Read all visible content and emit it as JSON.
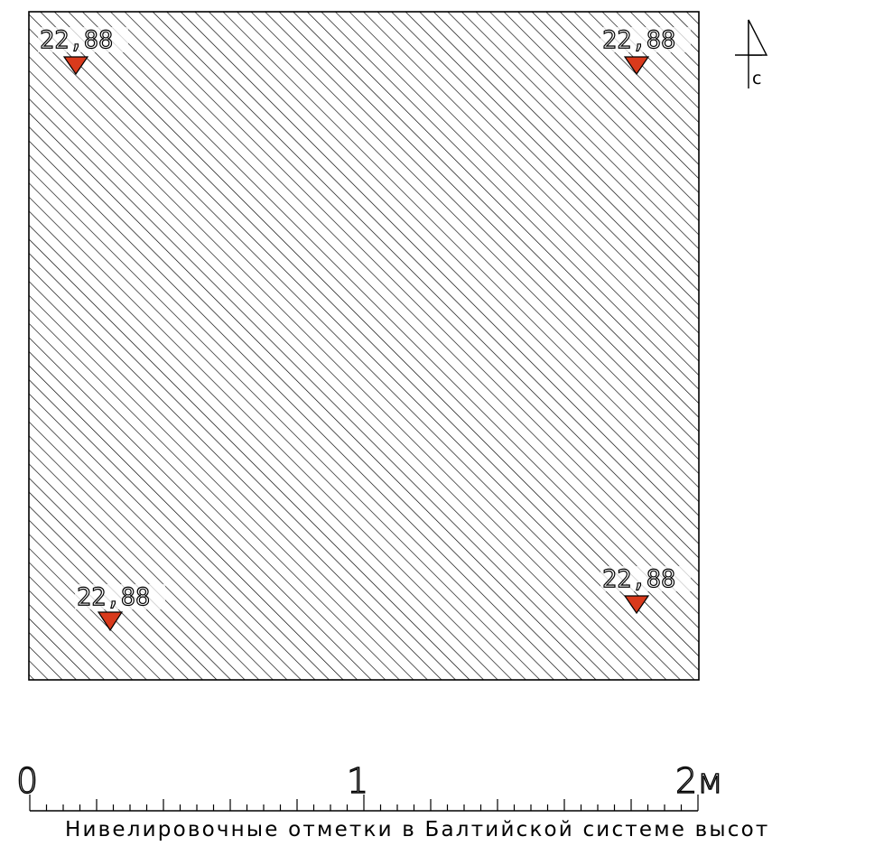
{
  "site": {
    "hatch_color": "#000000",
    "border_color": "#000000"
  },
  "north_arrow": {
    "label": "с"
  },
  "elevation_marks": [
    {
      "value": "22,88",
      "marker_color": "#d93a1c"
    },
    {
      "value": "22,88",
      "marker_color": "#d93a1c"
    },
    {
      "value": "22,88",
      "marker_color": "#d93a1c"
    },
    {
      "value": "22,88",
      "marker_color": "#d93a1c"
    }
  ],
  "scale_bar": {
    "labels": [
      "0",
      "1",
      "2м"
    ],
    "units": "м"
  },
  "caption": "Нивелировочные отметки в Балтийской системе высот"
}
